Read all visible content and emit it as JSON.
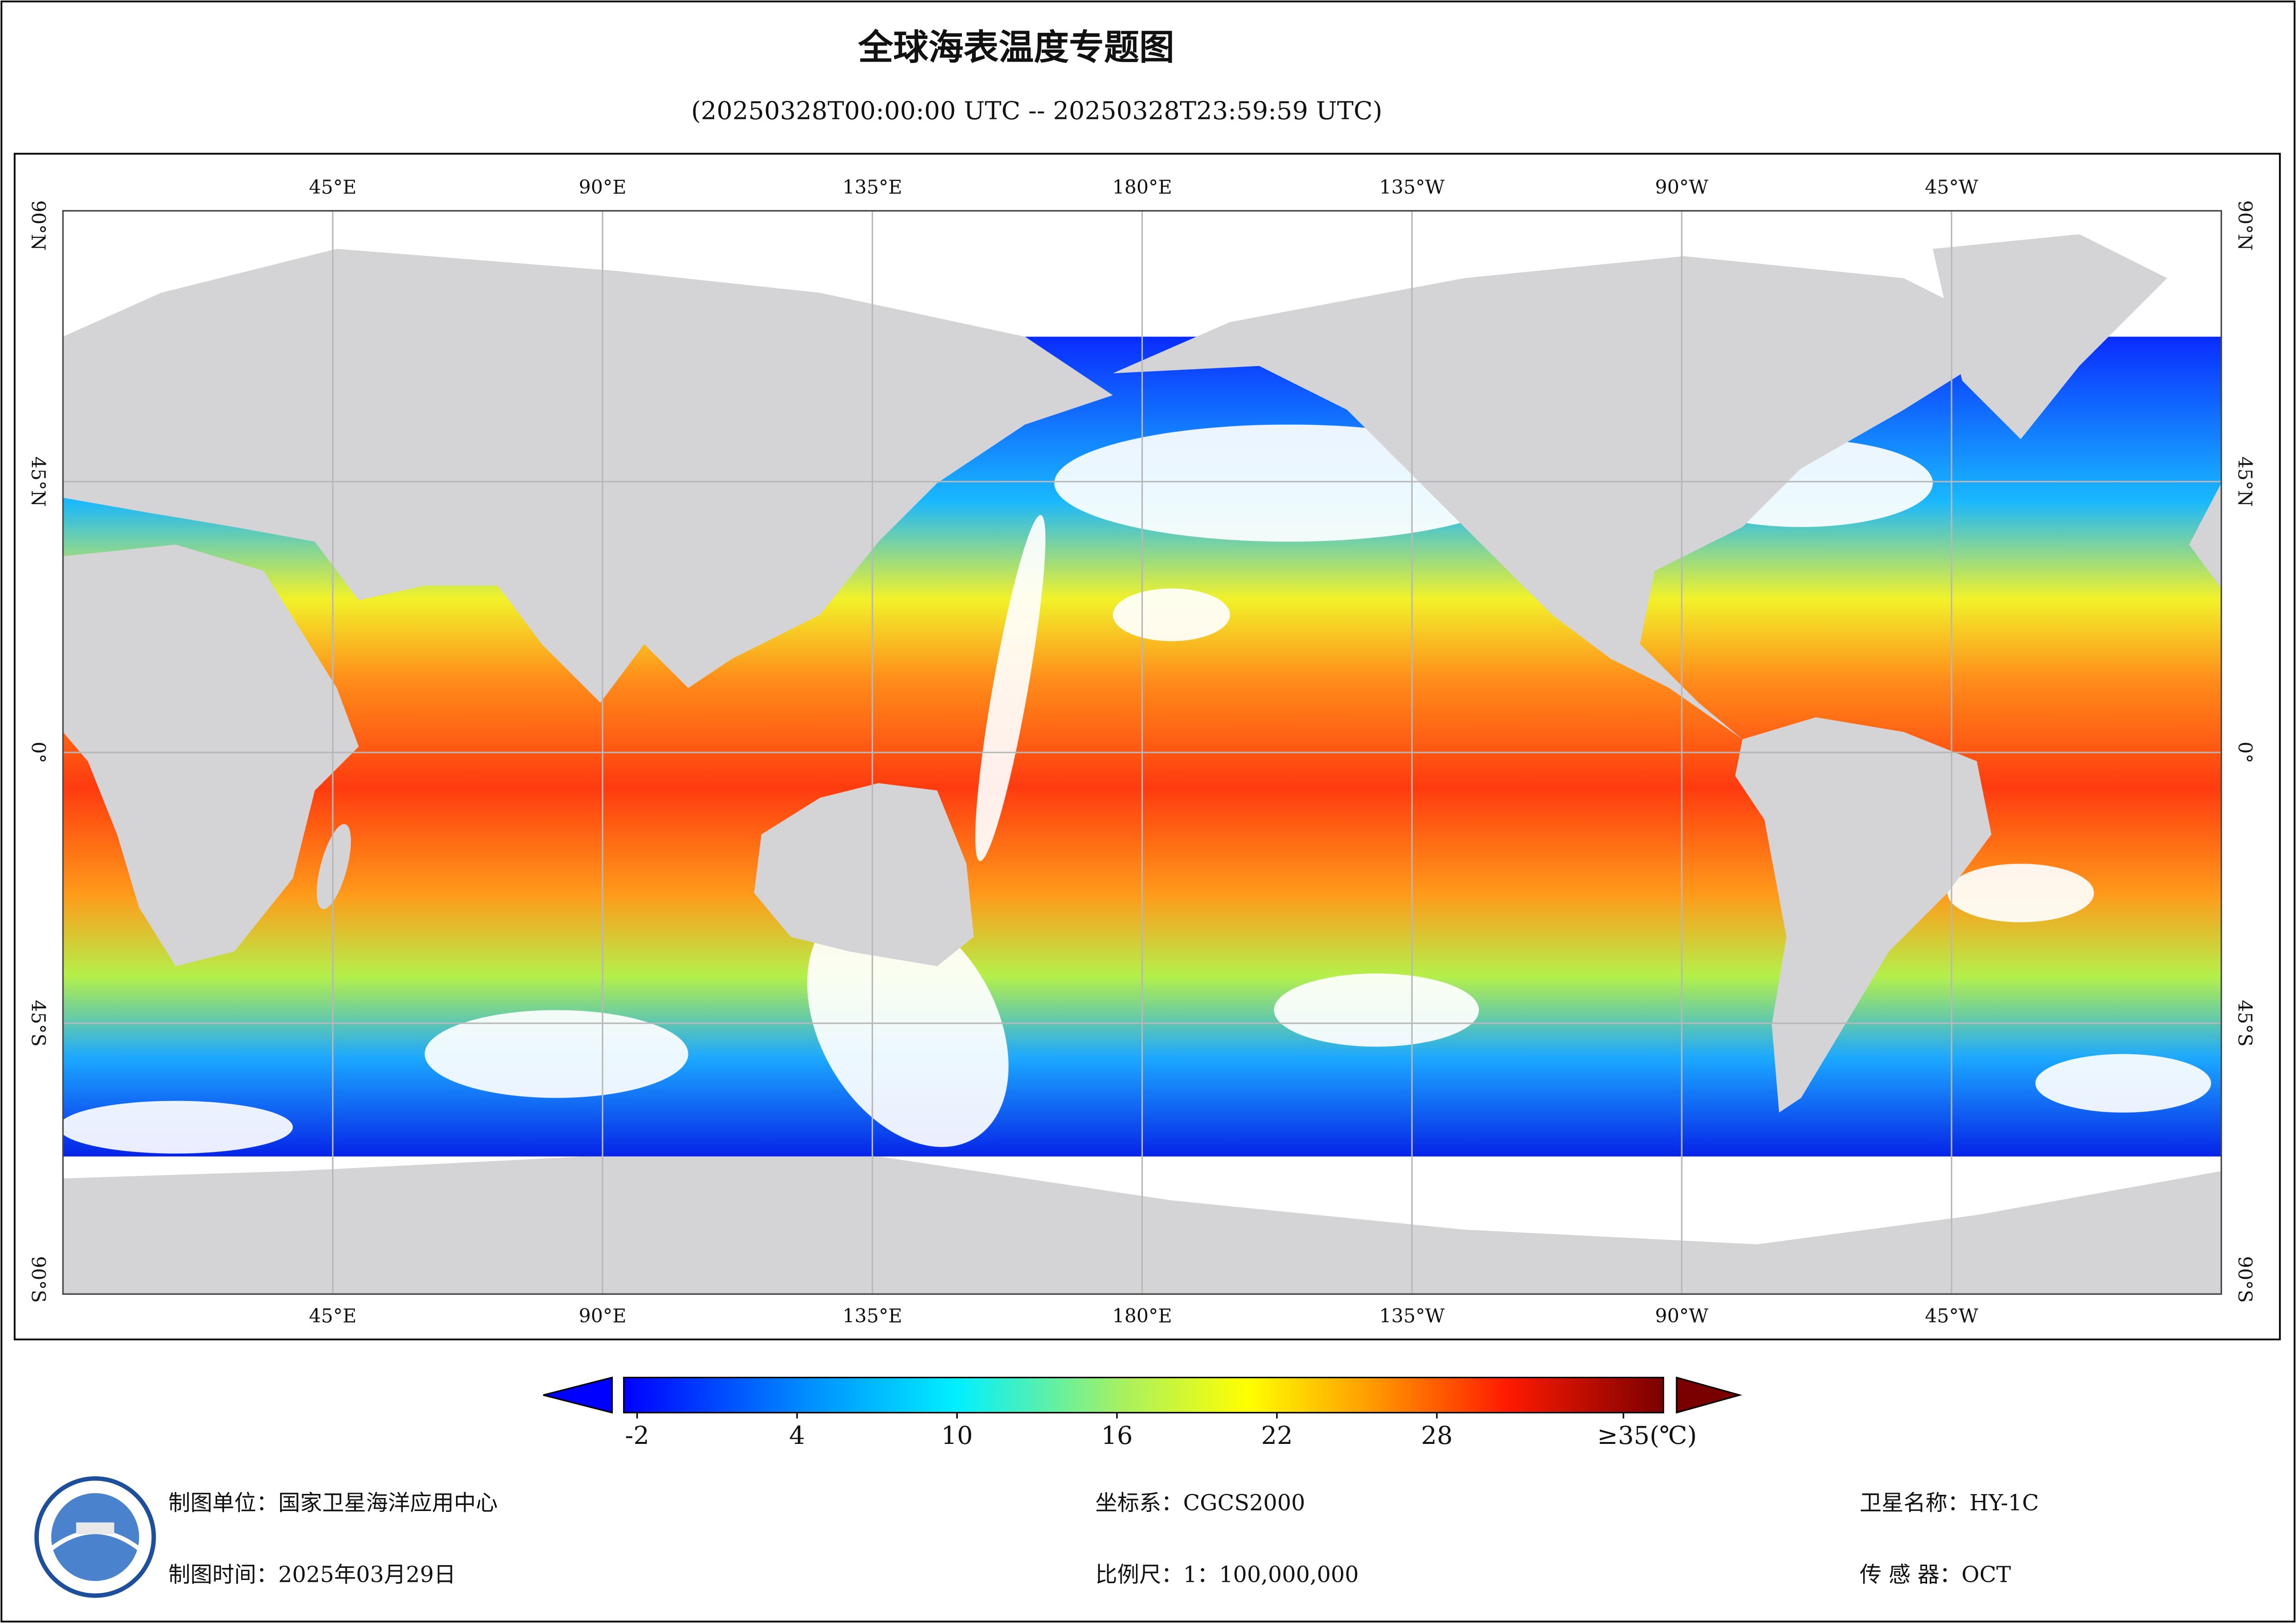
{
  "header": {
    "title": "全球海表温度专题图",
    "subtitle": "(20250328T00:00:00 UTC -- 20250328T23:59:59 UTC)"
  },
  "map": {
    "lonlim": [
      0,
      360
    ],
    "latlim": [
      -90,
      90
    ],
    "lon_ticks": [
      {
        "value": 45,
        "label": "45°E"
      },
      {
        "value": 90,
        "label": "90°E"
      },
      {
        "value": 135,
        "label": "135°E"
      },
      {
        "value": 180,
        "label": "180°E"
      },
      {
        "value": -135,
        "label": "135°W"
      },
      {
        "value": -90,
        "label": "90°W"
      },
      {
        "value": -45,
        "label": "45°W"
      }
    ],
    "lat_ticks": [
      {
        "value": 90,
        "label": "90°N"
      },
      {
        "value": 45,
        "label": "45°N"
      },
      {
        "value": 0,
        "label": "0°"
      },
      {
        "value": -45,
        "label": "45°S"
      },
      {
        "value": -90,
        "label": "90°S"
      }
    ]
  },
  "colorbar": {
    "clim": [
      -2.5,
      36.5
    ],
    "ticks": [
      -2,
      4,
      10,
      16,
      22,
      28,
      {
        "value": 35,
        "label": "≥35(℃)"
      }
    ]
  },
  "footer": {
    "unit": "制图单位：国家卫星海洋应用中心",
    "date": "制图时间：2025年03月29日",
    "crs": "坐标系：CGCS2000",
    "scale": "比例尺：1：100,000,000",
    "satellite": "卫星名称：HY-1C",
    "sensor": "传 感 器：OCT"
  }
}
